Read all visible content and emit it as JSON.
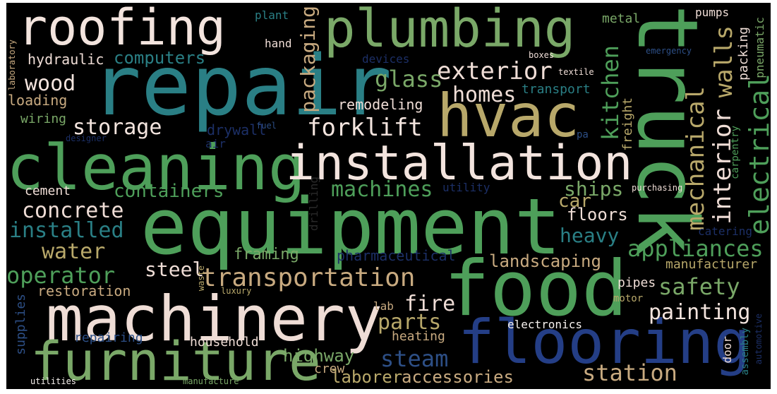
{
  "palette": {
    "background": "#000000",
    "teal": "#2a7f85",
    "green": "#4e9f5a",
    "sage": "#7aa868",
    "khaki": "#b8a86a",
    "tan": "#c8aa80",
    "blush": "#efddd6",
    "white": "#f7f2ef",
    "navy": "#243e86",
    "darknavy": "#1c2f66",
    "blue": "#2d4f86"
  },
  "words": {
    "roofing": "roofing",
    "plumbing": "plumbing",
    "truck": "truck",
    "repair": "repair",
    "hvac": "hvac",
    "cleaning": "cleaning",
    "installation": "installation",
    "equipment": "equipment",
    "food": "food",
    "machinery": "machinery",
    "flooring": "flooring",
    "furniture": "furniture",
    "exterior": "exterior",
    "glass": "glass",
    "homes": "homes",
    "kitchen": "kitchen",
    "interior": "interior",
    "walls": "walls",
    "electrical": "electrical",
    "mechanical": "mechanical",
    "forklift": "forklift",
    "storage": "storage",
    "wood": "wood",
    "hydraulic": "hydraulic",
    "computers": "computers",
    "packaging": "packaging",
    "concrete": "concrete",
    "containers": "containers",
    "machines": "machines",
    "ships": "ships",
    "car": "car",
    "floors": "floors",
    "heavy": "heavy",
    "appliances": "appliances",
    "installed": "installed",
    "water": "water",
    "operator": "operator",
    "steel": "steel",
    "transportation": "transportation",
    "landscaping": "landscaping",
    "safety": "safety",
    "painting": "painting",
    "parts": "parts",
    "fire": "fire",
    "steam": "steam",
    "station": "station",
    "accessories": "accessories",
    "laborer": "laborer",
    "highway": "highway",
    "household": "household",
    "restoration": "restoration",
    "remodeling": "remodeling",
    "transport": "transport",
    "drywall": "drywall",
    "loading": "loading",
    "wiring": "wiring",
    "cement": "cement",
    "framing": "framing",
    "pharmaceutical": "pharmaceutical",
    "manufacturer": "manufacturer",
    "catering": "catering",
    "pipes": "pipes",
    "motor": "motor",
    "electronics": "electronics",
    "heating": "heating",
    "lab": "lab",
    "crew": "crew",
    "supplies": "supplies",
    "repairing": "repairing",
    "utilities": "utilities",
    "manufacture": "manufacture",
    "waste": "waste",
    "luxury": "luxury",
    "drilling": "drilling",
    "utility": "utility",
    "purchasing": "purchasing",
    "packing": "packing",
    "pneumatic": "pneumatic",
    "freight": "freight",
    "carpentry": "carpentry",
    "pumps": "pumps",
    "metal": "metal",
    "boxes": "boxes",
    "emergency": "emergency",
    "textile": "textile",
    "plant": "plant",
    "hand": "hand",
    "devices": "devices",
    "laboratory": "laboratory",
    "fuel": "fuel",
    "air": "air",
    "designer": "designer",
    "pa": "pa",
    "door": "door",
    "assembly": "assembly",
    "automotive": "automotive"
  }
}
